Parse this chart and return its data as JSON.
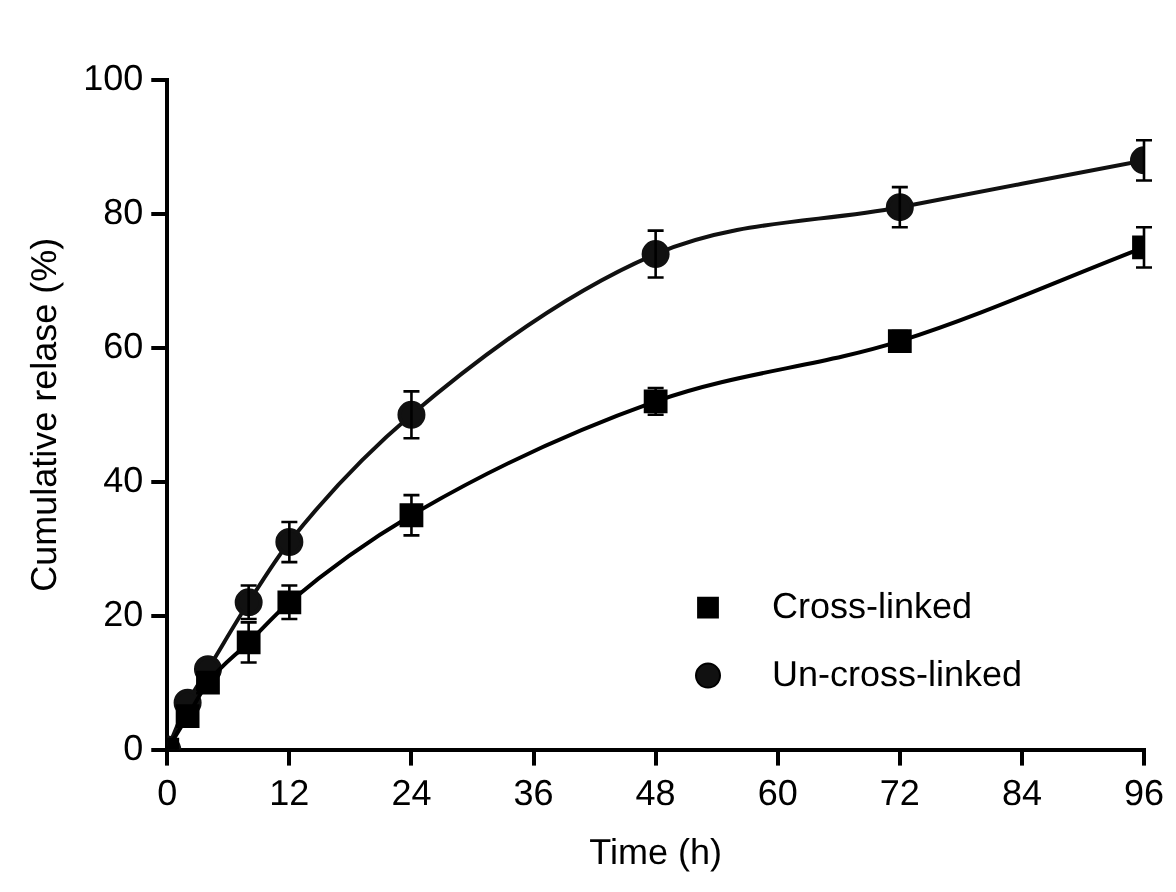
{
  "chart_data": {
    "type": "line",
    "xlabel": "Time (h)",
    "ylabel": "Cumulative relase (%)",
    "x": [
      0,
      2,
      4,
      8,
      12,
      24,
      48,
      72,
      96
    ],
    "xlim": [
      0,
      96
    ],
    "xticks": [
      0,
      12,
      24,
      36,
      48,
      60,
      72,
      84,
      96
    ],
    "ylim": [
      0,
      100
    ],
    "yticks": [
      0,
      20,
      40,
      60,
      80,
      100
    ],
    "series": [
      {
        "name": "Cross-linked",
        "color": "#000000",
        "marker": "square",
        "values": [
          0,
          5,
          10,
          16,
          22,
          35,
          52,
          61,
          75
        ],
        "errors": [
          null,
          null,
          null,
          3,
          2.5,
          3,
          2,
          1.5,
          3
        ]
      },
      {
        "name": "Un-cross-linked",
        "color": "#111111",
        "marker": "circle",
        "values": [
          0,
          7,
          12,
          22,
          31,
          50,
          74,
          81,
          88
        ],
        "errors": [
          null,
          null,
          null,
          2.5,
          3,
          3.5,
          3.5,
          3,
          3
        ]
      }
    ],
    "legend": "bottom right",
    "grid": false
  }
}
